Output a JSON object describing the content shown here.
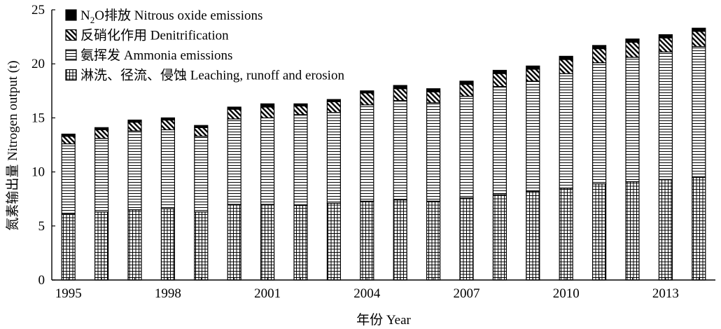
{
  "chart_data": {
    "type": "bar",
    "stacked": true,
    "xlabel": "年份 Year",
    "ylabel": "氮素输出量  Nitrogen output (t)",
    "ylim": [
      0,
      25
    ],
    "yticks": [
      0,
      5,
      10,
      15,
      20,
      25
    ],
    "x_tick_labels": [
      "1995",
      "1998",
      "2001",
      "2004",
      "2007",
      "2010",
      "2013"
    ],
    "grid": false,
    "legend_position": "top-left",
    "categories": [
      "1995",
      "1996",
      "1997",
      "1998",
      "1999",
      "2000",
      "2001",
      "2002",
      "2003",
      "2004",
      "2005",
      "2006",
      "2007",
      "2008",
      "2009",
      "2010",
      "2011",
      "2012",
      "2013",
      "2014"
    ],
    "series": [
      {
        "name": "淋洗、径流、侵蚀 Leaching, runoff and erosion",
        "pattern": "grid",
        "values": [
          6.1,
          6.3,
          6.5,
          6.6,
          6.3,
          7.0,
          7.0,
          6.9,
          7.1,
          7.3,
          7.4,
          7.3,
          7.6,
          7.9,
          8.2,
          8.5,
          8.9,
          9.1,
          9.3,
          9.5
        ]
      },
      {
        "name": "氨挥发 Ammonia emissions",
        "pattern": "hlines",
        "values": [
          6.5,
          6.8,
          7.3,
          7.3,
          7.0,
          7.9,
          8.0,
          8.4,
          8.4,
          8.9,
          9.2,
          9.1,
          9.4,
          10.0,
          10.2,
          10.6,
          11.2,
          11.5,
          11.8,
          12.1
        ]
      },
      {
        "name": "反硝化作用 Denitrification",
        "pattern": "diagonal",
        "values": [
          0.7,
          0.8,
          0.8,
          0.9,
          0.8,
          0.9,
          1.0,
          0.8,
          1.0,
          1.1,
          1.1,
          1.0,
          1.1,
          1.2,
          1.1,
          1.3,
          1.3,
          1.4,
          1.3,
          1.4
        ]
      },
      {
        "name": "N2O排放 Nitrous oxide emissions",
        "pattern": "solid",
        "values": [
          0.2,
          0.2,
          0.2,
          0.2,
          0.2,
          0.2,
          0.3,
          0.2,
          0.2,
          0.2,
          0.3,
          0.3,
          0.3,
          0.3,
          0.3,
          0.3,
          0.3,
          0.3,
          0.3,
          0.3
        ]
      }
    ],
    "legend_order": [
      3,
      2,
      1,
      0
    ],
    "colors": {
      "ink": "#000000",
      "fill": "#ffffff"
    }
  }
}
